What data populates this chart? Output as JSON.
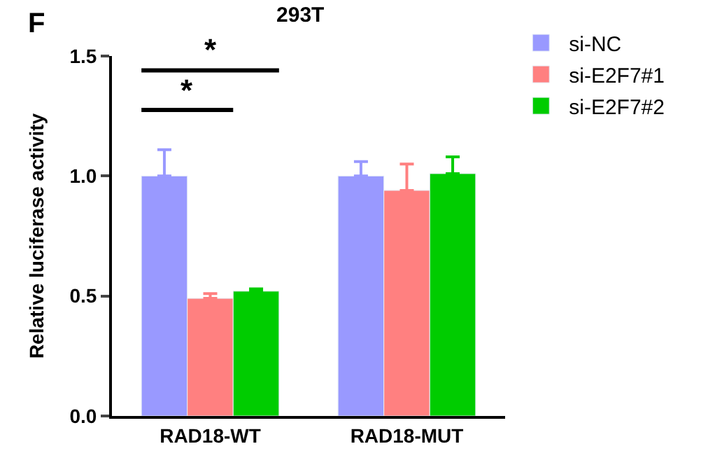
{
  "chart_data": {
    "type": "bar",
    "title": "293T",
    "ylabel": "Relative luciferase activity",
    "categories": [
      "RAD18-WT",
      "RAD18-MUT"
    ],
    "series": [
      {
        "name": "si-NC",
        "color": "#9999ff",
        "values": [
          1.0,
          1.0
        ],
        "errors": [
          [
            1.0,
            1.11
          ],
          [
            1.0,
            1.06
          ]
        ]
      },
      {
        "name": "si-E2F7#1",
        "color": "#ff8080",
        "values": [
          0.49,
          0.94
        ],
        "errors": [
          [
            0.49,
            0.51
          ],
          [
            0.94,
            1.05
          ]
        ]
      },
      {
        "name": "si-E2F7#2",
        "color": "#00cc00",
        "values": [
          0.52,
          1.01
        ],
        "errors": [
          [
            0.52,
            0.53
          ],
          [
            1.01,
            1.08
          ]
        ]
      }
    ],
    "ylim": [
      0,
      1.5
    ],
    "yticks": [
      {
        "value": 0,
        "label": "0.0"
      },
      {
        "value": 0.5,
        "label": "0.5"
      },
      {
        "value": 1,
        "label": "1.0"
      },
      {
        "value": 1.5,
        "label": "1.5"
      }
    ],
    "legend": "top right",
    "annotations": [
      "F",
      "*",
      "*"
    ]
  }
}
